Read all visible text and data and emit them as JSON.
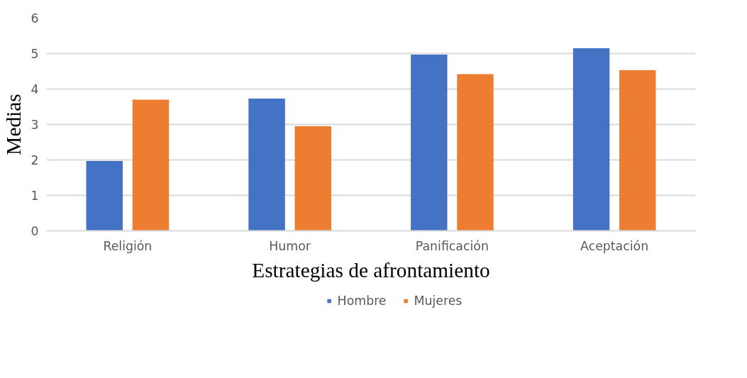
{
  "chart_data": {
    "type": "bar",
    "xlabel": "Estrategias de afrontamiento",
    "ylabel": "Medias",
    "categories": [
      "Religión",
      "Humor",
      "Panificación",
      "Aceptación"
    ],
    "series": [
      {
        "name": "Hombre",
        "color": "#4472c4",
        "values": [
          1.97,
          3.73,
          4.97,
          5.15
        ]
      },
      {
        "name": "Mujeres",
        "color": "#ed7d31",
        "values": [
          3.7,
          2.95,
          4.42,
          4.53
        ]
      }
    ],
    "ylim": [
      0,
      6
    ],
    "yticks": [
      0,
      1,
      2,
      3,
      4,
      5,
      6
    ],
    "grid": "y",
    "legend": "bottom"
  }
}
